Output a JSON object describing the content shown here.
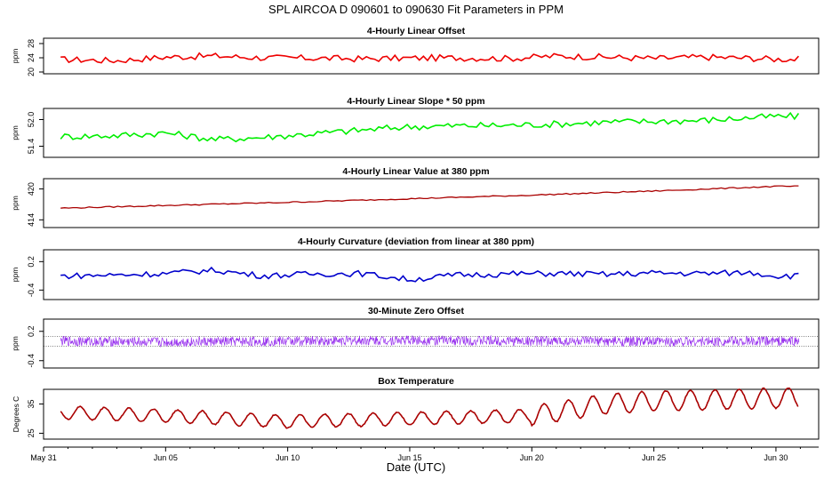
{
  "title": "SPL   AIRCOA D   090601 to 090630   Fit Parameters in PPM",
  "xlabel": "Date (UTC)",
  "x_ticks": [
    "May 31",
    "Jun 05",
    "Jun 10",
    "Jun 15",
    "Jun 20",
    "Jun 25",
    "Jun 30"
  ],
  "chart_data": [
    {
      "type": "line",
      "title": "4-Hourly Linear Offset",
      "ylabel": "ppm",
      "yticks": [
        "28",
        "24",
        "20"
      ],
      "ylim": [
        19.5,
        29.5
      ],
      "color": "#ee0000",
      "x": [
        "2009-06-01",
        "2009-06-03",
        "2009-06-05",
        "2009-06-07",
        "2009-06-09",
        "2009-06-11",
        "2009-06-13",
        "2009-06-15",
        "2009-06-17",
        "2009-06-19",
        "2009-06-21",
        "2009-06-23",
        "2009-06-25",
        "2009-06-27",
        "2009-06-29",
        "2009-06-30"
      ],
      "values": [
        23.5,
        23.2,
        24.2,
        24.5,
        24.0,
        23.9,
        23.7,
        23.9,
        24.0,
        23.8,
        24.5,
        24.2,
        23.8,
        24.2,
        23.9,
        23.6
      ]
    },
    {
      "type": "line",
      "title": "4-Hourly Linear Slope * 50 ppm",
      "ylabel": "ppm",
      "yticks": [
        "52.0",
        "51.4"
      ],
      "ylim": [
        51.15,
        52.25
      ],
      "color": "#00ee00",
      "x": [
        "2009-06-01",
        "2009-06-03",
        "2009-06-05",
        "2009-06-07",
        "2009-06-09",
        "2009-06-11",
        "2009-06-13",
        "2009-06-15",
        "2009-06-17",
        "2009-06-19",
        "2009-06-21",
        "2009-06-23",
        "2009-06-25",
        "2009-06-27",
        "2009-06-29",
        "2009-06-30"
      ],
      "values": [
        51.62,
        51.64,
        51.7,
        51.55,
        51.6,
        51.68,
        51.76,
        51.84,
        51.86,
        51.87,
        51.9,
        51.94,
        51.96,
        51.98,
        52.04,
        52.07
      ]
    },
    {
      "type": "line",
      "title": "4-Hourly Linear Value at 380 ppm",
      "ylabel": "ppm",
      "yticks": [
        "420",
        "414"
      ],
      "ylim": [
        412.5,
        422.0
      ],
      "color": "#aa0000",
      "x": [
        "2009-06-01",
        "2009-06-05",
        "2009-06-10",
        "2009-06-15",
        "2009-06-20",
        "2009-06-25",
        "2009-06-30"
      ],
      "values": [
        416.3,
        416.8,
        417.4,
        418.1,
        418.8,
        419.6,
        420.5
      ]
    },
    {
      "type": "line",
      "title": "4-Hourly Curvature (deviation from linear at 380 ppm)",
      "ylabel": "ppm",
      "yticks": [
        "0.2",
        "-0.4"
      ],
      "ylim": [
        -0.6,
        0.45
      ],
      "color": "#0000cc",
      "x": [
        "2009-06-01",
        "2009-06-03",
        "2009-06-05",
        "2009-06-07",
        "2009-06-09",
        "2009-06-11",
        "2009-06-13",
        "2009-06-15",
        "2009-06-17",
        "2009-06-19",
        "2009-06-21",
        "2009-06-23",
        "2009-06-25",
        "2009-06-27",
        "2009-06-29",
        "2009-06-30"
      ],
      "values": [
        -0.1,
        -0.08,
        -0.05,
        0.02,
        -0.1,
        -0.06,
        -0.05,
        -0.18,
        -0.08,
        -0.06,
        -0.05,
        -0.07,
        -0.04,
        -0.05,
        -0.03,
        -0.1
      ]
    },
    {
      "type": "line",
      "title": "30-Minute Zero Offset",
      "ylabel": "ppm",
      "yticks": [
        "0.2",
        "-0.4"
      ],
      "ylim": [
        -0.55,
        0.45
      ],
      "color": "#9933ee",
      "reference_lines": [
        0.1,
        -0.1
      ],
      "x": [
        "2009-06-01",
        "2009-06-05",
        "2009-06-10",
        "2009-06-15",
        "2009-06-20",
        "2009-06-25",
        "2009-06-30"
      ],
      "values": [
        0.0,
        -0.02,
        0.0,
        0.02,
        0.0,
        -0.01,
        0.0
      ]
    },
    {
      "type": "line",
      "title": "Box Temperature",
      "ylabel": "Degrees C",
      "yticks": [
        "35",
        "25"
      ],
      "ylim": [
        23,
        40
      ],
      "color": "#aa0000",
      "x": [
        "2009-06-01",
        "2009-06-05",
        "2009-06-10",
        "2009-06-15",
        "2009-06-20",
        "2009-06-23",
        "2009-06-25",
        "2009-06-30"
      ],
      "values": [
        32,
        31,
        29,
        30,
        31,
        35,
        36,
        37
      ]
    }
  ]
}
